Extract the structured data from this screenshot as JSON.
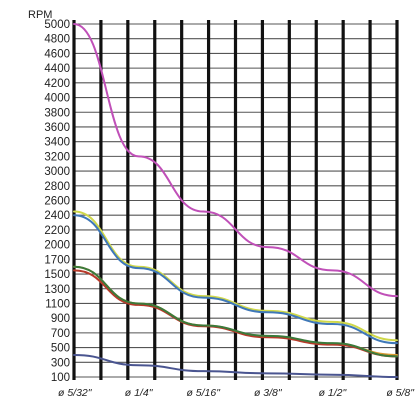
{
  "chart_data": {
    "type": "line",
    "title": "",
    "xlabel": "",
    "ylabel": "RPM",
    "x_categories": [
      "ø 5/32\"",
      "ø 1/4\"",
      "ø 5/16\"",
      "ø 3/8\"",
      "ø 1/2\"",
      "ø 5/8\""
    ],
    "x": [
      0.156,
      0.25,
      0.3125,
      0.375,
      0.5,
      0.625
    ],
    "y_ticks": [
      100,
      300,
      500,
      700,
      900,
      1100,
      1300,
      1500,
      1700,
      2000,
      2200,
      2400,
      2600,
      2800,
      3000,
      3200,
      3400,
      3600,
      3800,
      4000,
      4200,
      4400,
      4600,
      4800,
      5000
    ],
    "grid": true,
    "legend": "none",
    "series": [
      {
        "color": "#c050b8",
        "values": [
          5000,
          3200,
          2450,
          1950,
          1550,
          1200
        ]
      },
      {
        "color": "#cfd84a",
        "values": [
          2450,
          1600,
          1200,
          1000,
          850,
          600
        ]
      },
      {
        "color": "#3f78b8",
        "values": [
          2400,
          1580,
          1180,
          980,
          820,
          560
        ]
      },
      {
        "color": "#d89a30",
        "values": [
          1600,
          1100,
          800,
          650,
          550,
          400
        ]
      },
      {
        "color": "#b83a2a",
        "values": [
          1550,
          1080,
          790,
          640,
          540,
          380
        ]
      },
      {
        "color": "#3b7a3b",
        "values": [
          1600,
          1100,
          800,
          660,
          560,
          380
        ]
      },
      {
        "color": "#4a5590",
        "values": [
          400,
          260,
          180,
          150,
          130,
          100
        ]
      }
    ]
  }
}
